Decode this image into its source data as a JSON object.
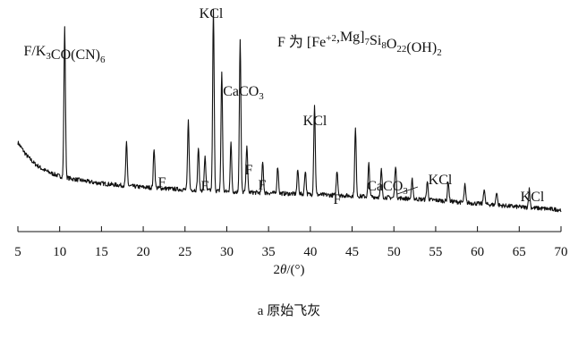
{
  "chart_data": {
    "type": "line",
    "title": "",
    "caption": "a 原始飞灰",
    "xlabel": "2θ/(°)",
    "ylabel": "",
    "xlim": [
      5,
      70
    ],
    "x_ticks": [
      "5",
      "10",
      "15",
      "20",
      "25",
      "30",
      "35",
      "40",
      "45",
      "50",
      "55",
      "60",
      "65",
      "70"
    ],
    "y_axis_shown": false,
    "grid": false,
    "legend_text": "F 为 [Fe+2,Mg]7Si8O22(OH)2",
    "background": [
      [
        5.0,
        150
      ],
      [
        6.0,
        124
      ],
      [
        7.0,
        106
      ],
      [
        8.0,
        94
      ],
      [
        9.0,
        86
      ],
      [
        10.0,
        80
      ],
      [
        11.0,
        76
      ],
      [
        12.0,
        73
      ],
      [
        13.0,
        70
      ],
      [
        14.0,
        67
      ],
      [
        15.0,
        65
      ],
      [
        16.0,
        63
      ],
      [
        18.0,
        60
      ],
      [
        20.0,
        57
      ],
      [
        22.0,
        55
      ],
      [
        25.0,
        52
      ],
      [
        28.0,
        50
      ],
      [
        30.0,
        48
      ],
      [
        35.0,
        45
      ],
      [
        40.0,
        42
      ],
      [
        45.0,
        39
      ],
      [
        50.0,
        35
      ],
      [
        55.0,
        30
      ],
      [
        60.0,
        23
      ],
      [
        65.0,
        16
      ],
      [
        70.0,
        10
      ]
    ],
    "peaks": [
      {
        "x": 10.6,
        "y": 310
      },
      {
        "x": 18.0,
        "y": 88
      },
      {
        "x": 21.3,
        "y": 82
      },
      {
        "x": 25.4,
        "y": 143
      },
      {
        "x": 26.6,
        "y": 88
      },
      {
        "x": 27.4,
        "y": 72
      },
      {
        "x": 28.4,
        "y": 375
      },
      {
        "x": 29.4,
        "y": 248
      },
      {
        "x": 30.5,
        "y": 100
      },
      {
        "x": 31.6,
        "y": 316
      },
      {
        "x": 32.4,
        "y": 100
      },
      {
        "x": 34.3,
        "y": 63
      },
      {
        "x": 36.1,
        "y": 56
      },
      {
        "x": 38.5,
        "y": 50
      },
      {
        "x": 39.4,
        "y": 50
      },
      {
        "x": 40.5,
        "y": 187
      },
      {
        "x": 43.2,
        "y": 52
      },
      {
        "x": 45.4,
        "y": 140
      },
      {
        "x": 47.0,
        "y": 68
      },
      {
        "x": 48.5,
        "y": 57
      },
      {
        "x": 50.2,
        "y": 68
      },
      {
        "x": 52.2,
        "y": 40
      },
      {
        "x": 54.0,
        "y": 38
      },
      {
        "x": 56.5,
        "y": 42
      },
      {
        "x": 58.5,
        "y": 36
      },
      {
        "x": 60.8,
        "y": 32
      },
      {
        "x": 62.3,
        "y": 28
      },
      {
        "x": 66.2,
        "y": 38
      }
    ],
    "annotations": [
      {
        "text": "F/K3CO(CN)6",
        "x": 10.6
      },
      {
        "text": "KCl",
        "x": 28.4
      },
      {
        "text": "CaCO3",
        "x": 29.4
      },
      {
        "text": "F",
        "x": 21.3
      },
      {
        "text": "F",
        "x": 27.4
      },
      {
        "text": "F",
        "x": 32.4
      },
      {
        "text": "F",
        "x": 34.3
      },
      {
        "text": "KCl",
        "x": 40.5
      },
      {
        "text": "F",
        "x": 43.2
      },
      {
        "text": "CaCO3",
        "x": 47.0
      },
      {
        "text": "KCl",
        "x": 50.2
      },
      {
        "text": "KCl",
        "x": 66.2
      }
    ]
  }
}
